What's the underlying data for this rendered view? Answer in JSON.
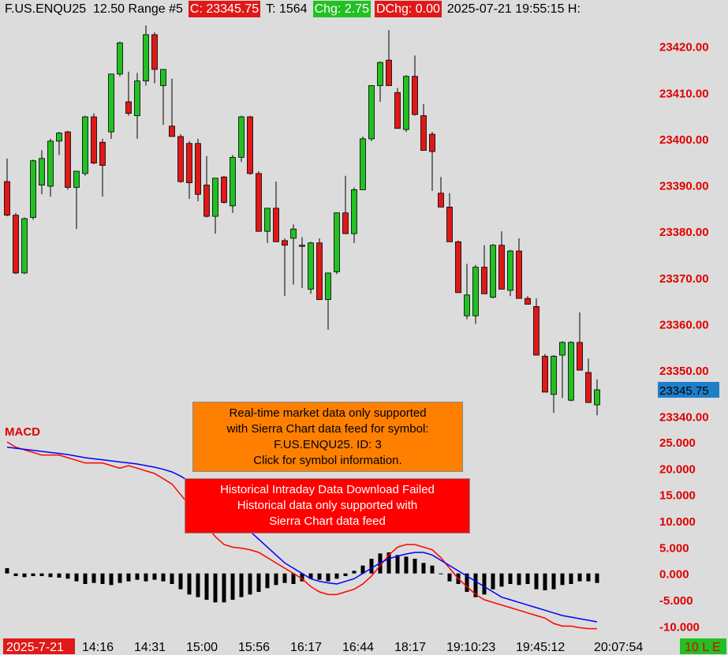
{
  "header": {
    "symbol": "F.US.ENQU25  12.50 Range #5",
    "close": "C: 23345.75",
    "trades": "T: 1564",
    "change": "Chg: 2.75",
    "daily_change": "DChg: 0.00",
    "datetime": "2025-07-21 19:55:15 H:"
  },
  "notices": [
    {
      "lines": [
        "Real-time market data only supported",
        "with Sierra Chart data feed for symbol:",
        "F.US.ENQU25.  ID: 3",
        "Click for symbol information."
      ],
      "color": "#ff8000"
    },
    {
      "lines": [
        "Historical Intraday Data Download Failed",
        "Historical data only supported with",
        "Sierra Chart data feed"
      ],
      "color": "#ff0000"
    }
  ],
  "status": "10 L E",
  "chart_data": [
    {
      "type": "candlestick",
      "up_color": "#22c022",
      "down_color": "#e01818",
      "categories": [
        "2025-7-21",
        null,
        null,
        null,
        null,
        null,
        null,
        null,
        null,
        "14:16",
        null,
        null,
        null,
        null,
        null,
        "14:31",
        null,
        null,
        null,
        null,
        null,
        "15:00",
        null,
        null,
        null,
        null,
        null,
        "15:56",
        null,
        null,
        null,
        null,
        null,
        "16:17",
        null,
        null,
        null,
        null,
        null,
        "16:44",
        null,
        null,
        null,
        null,
        null,
        "18:17",
        null,
        null,
        null,
        null,
        null,
        "19:10:23",
        null,
        null,
        null,
        null,
        null,
        null,
        null,
        "19:45:12",
        null,
        null,
        null,
        null,
        null,
        null,
        null,
        null,
        "20:07:54"
      ],
      "open": [
        23390.75,
        23383.5,
        23371,
        23383,
        23390,
        23389.75,
        23399.5,
        23401.5,
        23389.5,
        23392.5,
        23404.75,
        23399.25,
        23401.5,
        23414,
        23408,
        23405,
        23412.5,
        23422.5,
        23411.5,
        23402.75,
        23400.5,
        23399,
        23399,
        23390,
        23383.25,
        23391.75,
        23385.5,
        23396,
        23404.75,
        23392.5,
        23380,
        23385,
        23378,
        23378.5,
        23377,
        23367.5,
        23377.5,
        23365.25,
        23371.25,
        23384,
        23379.5,
        23389,
        23400,
        23411.5,
        23417,
        23410,
        23402,
        23413.5,
        23405,
        23401,
        23388.25,
        23385.25,
        23377.75,
        23361.75,
        23361.75,
        23372.25,
        23365.75,
        23377,
        23367.25,
        23375.75,
        23365.5,
        23363.75,
        23353,
        23344.75,
        23353.25,
        23343.5,
        23356,
        23349.5,
        23342.5
      ],
      "high": [
        23395.75,
        23384,
        23383,
        23395.5,
        23397.5,
        23400,
        23401.5,
        23401.75,
        23393,
        23405,
        23405.5,
        23400,
        23414,
        23421,
        23414.5,
        23414.25,
        23424.5,
        23423,
        23415,
        23413,
        23401,
        23399.5,
        23400,
        23396.25,
        23391.5,
        23392,
        23396.5,
        23405,
        23405,
        23393,
        23385,
        23390.75,
        23378.5,
        23381.5,
        23378.75,
        23377.75,
        23378.5,
        23371,
        23384,
        23392,
        23389.5,
        23400.5,
        23411.5,
        23416.75,
        23423.5,
        23411,
        23413.75,
        23418,
        23407.5,
        23401.5,
        23391.75,
        23388.25,
        23378,
        23373,
        23372.75,
        23377,
        23377.25,
        23380,
        23376,
        23378.5,
        23366,
        23365.5,
        23353.5,
        23353.25,
        23356.25,
        23356.25,
        23362.5,
        23352.5,
        23348
      ],
      "low": [
        23383.25,
        23370.75,
        23370.75,
        23382.5,
        23388,
        23387.5,
        23396.5,
        23389,
        23380.5,
        23392,
        23394.5,
        23387.5,
        23400,
        23413.5,
        23405,
        23400,
        23411.5,
        23412,
        23403,
        23400.5,
        23390.5,
        23387,
        23386.5,
        23383,
        23379.5,
        23386,
        23384,
        23395,
        23392.25,
        23380,
        23377.5,
        23377.75,
        23366,
        23368.5,
        23367.75,
        23366.5,
        23365.25,
        23358.75,
        23370.75,
        23379.5,
        23377.5,
        23389,
        23399.5,
        23408,
        23411.5,
        23402.25,
        23401.5,
        23405,
        23397.5,
        23388.75,
        23385.25,
        23377.75,
        23366.75,
        23361,
        23360,
        23366.5,
        23365.5,
        23367.5,
        23366,
        23365.5,
        23364.25,
        23353.25,
        23345.25,
        23340.75,
        23344,
        23343.25,
        23350,
        23343,
        23340.25
      ],
      "close": [
        23383.5,
        23371,
        23382.75,
        23395.25,
        23395.75,
        23399.5,
        23401.25,
        23389.5,
        23393,
        23404.75,
        23394.75,
        23394.25,
        23414,
        23420.75,
        23405.5,
        23412.5,
        23422.5,
        23415,
        23415,
        23400.5,
        23390.75,
        23390.5,
        23388,
        23383.25,
        23391.5,
        23386.25,
        23396,
        23404.75,
        23392.5,
        23380,
        23385,
        23377.75,
        23377,
        23380.5,
        23376.75,
        23377.5,
        23365.25,
        23371,
        23384,
        23379.5,
        23389,
        23400,
        23411.5,
        23416.5,
        23411.5,
        23402.25,
        23413.5,
        23405.25,
        23397.5,
        23397.25,
        23385.25,
        23377.75,
        23366.75,
        23366.25,
        23372.25,
        23366.5,
        23377,
        23367.5,
        23375.75,
        23365.5,
        23364.25,
        23353.25,
        23345.25,
        23353,
        23356,
        23356,
        23350,
        23343,
        23345.75
      ],
      "ylim": [
        23338.75,
        23426.25
      ],
      "yticks": [
        {
          "value": 23420,
          "label": "23420.00"
        },
        {
          "value": 23410,
          "label": "23410.00"
        },
        {
          "value": 23400,
          "label": "23400.00"
        },
        {
          "value": 23390,
          "label": "23390.00"
        },
        {
          "value": 23380,
          "label": "23380.00"
        },
        {
          "value": 23370,
          "label": "23370.00"
        },
        {
          "value": 23360,
          "label": "23360.00"
        },
        {
          "value": 23350,
          "label": "23350.00"
        },
        {
          "value": 23340,
          "label": "23340.00"
        }
      ],
      "last_price_color": "#1e7fc8"
    },
    {
      "type": "macd",
      "title": "MACD",
      "histogram": {
        "color": "#000000",
        "values": [
          1,
          -0.5,
          -0.7,
          -0.5,
          -0.5,
          -0.7,
          -0.8,
          -1,
          -1.5,
          -2,
          -1.8,
          -2,
          -2.2,
          -1.8,
          -1.5,
          -1.2,
          -1.5,
          -1.2,
          -1.5,
          -2,
          -3,
          -4,
          -4.5,
          -5,
          -5.5,
          -5.5,
          -5,
          -4.5,
          -4,
          -3.5,
          -2.8,
          -2.2,
          -1.8,
          -2,
          -1.5,
          -1,
          -1.2,
          -1.5,
          -1,
          -0.5,
          0.5,
          1.5,
          2.8,
          3.8,
          4,
          3.5,
          3.2,
          2.8,
          2,
          1.5,
          0,
          -1.5,
          -2,
          -3.5,
          -4.5,
          -4,
          -3,
          -2.5,
          -2,
          -2.2,
          -2,
          -3,
          -3.2,
          -3,
          -2.2,
          -2,
          -1.5,
          -1.5,
          -1.8
        ]
      },
      "lines": [
        {
          "color": "#ff0000",
          "values": [
            25,
            24,
            23.5,
            23,
            22.5,
            22.5,
            22.5,
            22,
            21.5,
            21,
            21,
            21,
            20.5,
            20,
            20.5,
            20,
            19.5,
            19,
            18,
            17,
            15,
            13,
            11,
            9,
            7,
            5.5,
            5,
            4.8,
            4.5,
            4,
            3,
            2,
            1,
            0,
            -1,
            -2.5,
            -3.5,
            -4,
            -4,
            -3.5,
            -3,
            -2,
            -0.5,
            1.5,
            3.5,
            5,
            5.5,
            5.5,
            5,
            4.5,
            3,
            1,
            -1,
            -2.5,
            -4,
            -5,
            -5.5,
            -6,
            -6.5,
            -7,
            -7.5,
            -8,
            -8.5,
            -9.5,
            -10,
            -10,
            -10.3,
            -10.5,
            -10.5
          ]
        },
        {
          "color": "#0000ff",
          "values": [
            24,
            23.8,
            23.6,
            23.4,
            23.2,
            23,
            22.8,
            22.6,
            22.3,
            22,
            21.8,
            21.6,
            21.4,
            21.2,
            21,
            20.8,
            20.5,
            20.2,
            19.8,
            19.3,
            18.5,
            17.5,
            16.5,
            15.3,
            14,
            12.5,
            11,
            9.5,
            8,
            6.5,
            5,
            3.5,
            2,
            1,
            0,
            -1,
            -1.5,
            -1.8,
            -2,
            -1.5,
            -1,
            0,
            1,
            2,
            2.8,
            3.3,
            3.7,
            4,
            4,
            3.5,
            2.5,
            1.5,
            0.5,
            -0.5,
            -1.5,
            -2.5,
            -3.5,
            -4.5,
            -5,
            -5.5,
            -6,
            -6.5,
            -7,
            -7.5,
            -8,
            -8.3,
            -8.6,
            -8.9,
            -9.2
          ]
        }
      ],
      "ylim": [
        -11.75,
        28
      ],
      "yticks": [
        {
          "value": 25,
          "label": "25.000"
        },
        {
          "value": 20,
          "label": "20.000"
        },
        {
          "value": 15,
          "label": "15.000"
        },
        {
          "value": 10,
          "label": "10.000"
        },
        {
          "value": 5,
          "label": "5.000"
        },
        {
          "value": 0,
          "label": "0.000"
        },
        {
          "value": -5,
          "label": "-5.000"
        },
        {
          "value": -10,
          "label": "-10.000"
        }
      ]
    }
  ]
}
